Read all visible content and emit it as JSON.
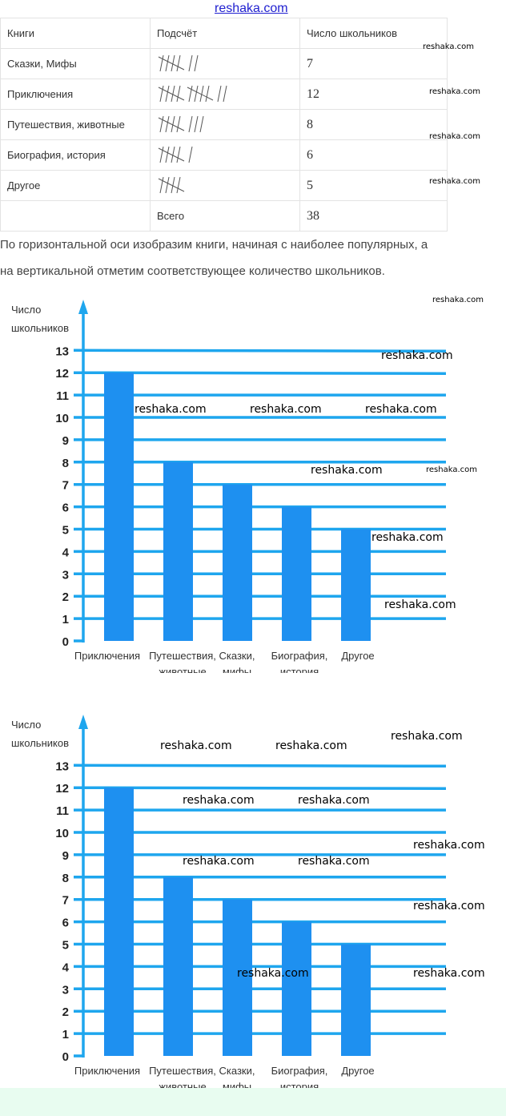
{
  "watermark": "reshaka.com",
  "table": {
    "headers": [
      "Книги",
      "Подсчёт",
      "Число школьников"
    ],
    "rows": [
      {
        "book": "Сказки, Мифы",
        "tally": 7,
        "count": "7"
      },
      {
        "book": "Приключения",
        "tally": 12,
        "count": "12"
      },
      {
        "book": "Путешествия, животные",
        "tally": 8,
        "count": "8"
      },
      {
        "book": "Биография, история",
        "tally": 6,
        "count": "6"
      },
      {
        "book": "Другое",
        "tally": 5,
        "count": "5"
      }
    ],
    "total_label": "Всего",
    "total": "38"
  },
  "paragraph": [
    "По горизонтальной оси изобразим книги, начиная с наиболее популярных, а",
    "на вертикальной отметим соответствующее количество школьников."
  ],
  "colors": {
    "axis": "#1ea6ee",
    "bar": "#1e90f0"
  },
  "chart_data": [
    {
      "type": "bar",
      "ylabel": [
        "Число",
        "школьников"
      ],
      "categories": [
        [
          "Приключения"
        ],
        [
          "Путешествия,",
          "животные"
        ],
        [
          "Сказки,",
          "мифы"
        ],
        [
          "Биография,",
          "история"
        ],
        [
          "Другое"
        ]
      ],
      "values": [
        12,
        8,
        7,
        6,
        5
      ],
      "ylim": [
        0,
        13
      ],
      "yticks": [
        0,
        1,
        2,
        3,
        4,
        5,
        6,
        7,
        8,
        9,
        10,
        11,
        12,
        13
      ],
      "grid": true
    },
    {
      "type": "bar",
      "ylabel": [
        "Число",
        "школьников"
      ],
      "categories": [
        [
          "Приключения"
        ],
        [
          "Путешествия,",
          "животные"
        ],
        [
          "Сказки,",
          "мифы"
        ],
        [
          "Биография,",
          "история"
        ],
        [
          "Другое"
        ]
      ],
      "values": [
        12,
        8,
        7,
        6,
        5
      ],
      "ylim": [
        0,
        13
      ],
      "yticks": [
        0,
        1,
        2,
        3,
        4,
        5,
        6,
        7,
        8,
        9,
        10,
        11,
        12,
        13
      ],
      "grid": true
    }
  ]
}
